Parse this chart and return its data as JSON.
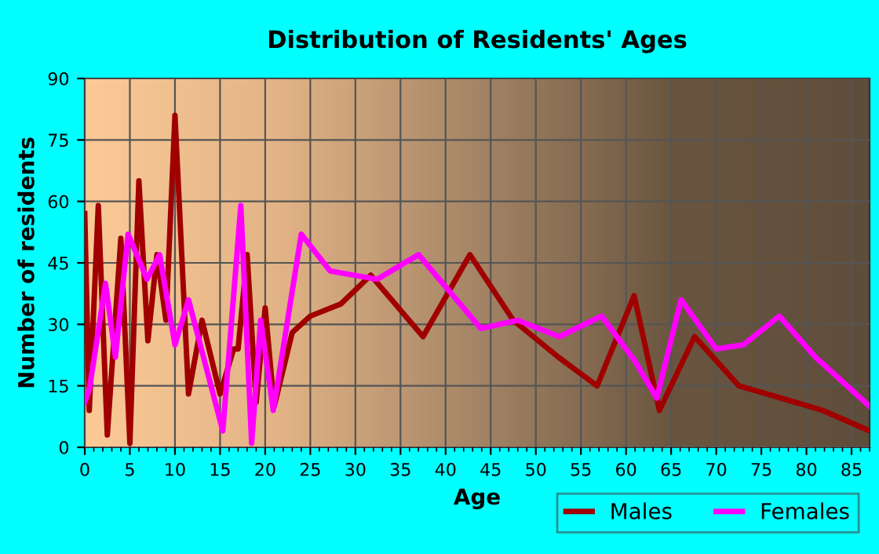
{
  "chart_data": {
    "type": "line",
    "title": "Distribution of Residents' Ages",
    "xlabel": "Age",
    "ylabel": "Number of residents",
    "xlim": [
      0,
      87
    ],
    "ylim": [
      0,
      90
    ],
    "xticks": [
      0,
      5,
      10,
      15,
      20,
      25,
      30,
      35,
      40,
      45,
      50,
      55,
      60,
      65,
      70,
      75,
      80,
      85
    ],
    "yticks": [
      0,
      15,
      30,
      45,
      60,
      75,
      90
    ],
    "grid": true,
    "legend": "bottom right",
    "marker": "none",
    "line_style": "solid",
    "series": [
      {
        "name": "Males",
        "color": "#a00000",
        "x": [
          0,
          0.5,
          1.5,
          2.5,
          4,
          5,
          6,
          7,
          8,
          9,
          10,
          11.5,
          13,
          15,
          16.5,
          17,
          18,
          19,
          20,
          21,
          23,
          25,
          28.4,
          31.7,
          37.5,
          42.7,
          47.5,
          52.5,
          56.8,
          60.9,
          63.7,
          67.6,
          72.5,
          77.2,
          81.8,
          87
        ],
        "values": [
          57,
          9,
          59,
          3,
          51,
          1,
          65,
          26,
          47,
          31,
          81,
          13,
          31,
          13,
          24,
          24,
          47,
          11,
          34,
          10,
          28,
          32,
          35,
          42,
          27,
          47,
          31,
          22,
          15,
          37,
          9,
          27,
          15,
          12,
          9,
          4
        ]
      },
      {
        "name": "Females",
        "color": "#ff00ff",
        "x": [
          0,
          0.5,
          2.3,
          3.4,
          4.8,
          6.9,
          8.3,
          10,
          11.5,
          15.3,
          17.3,
          18.5,
          19.5,
          20.9,
          24,
          27.2,
          32.4,
          37,
          43.9,
          48,
          52.6,
          57.3,
          61,
          63.4,
          66.1,
          70,
          73,
          77,
          81,
          87
        ],
        "values": [
          11,
          14,
          40,
          22,
          52,
          41,
          47,
          25,
          36,
          4,
          59,
          1,
          31,
          9,
          52,
          43,
          41,
          47,
          29,
          31,
          27,
          32,
          21,
          12,
          36,
          24,
          25,
          32,
          22,
          10
        ]
      }
    ]
  }
}
